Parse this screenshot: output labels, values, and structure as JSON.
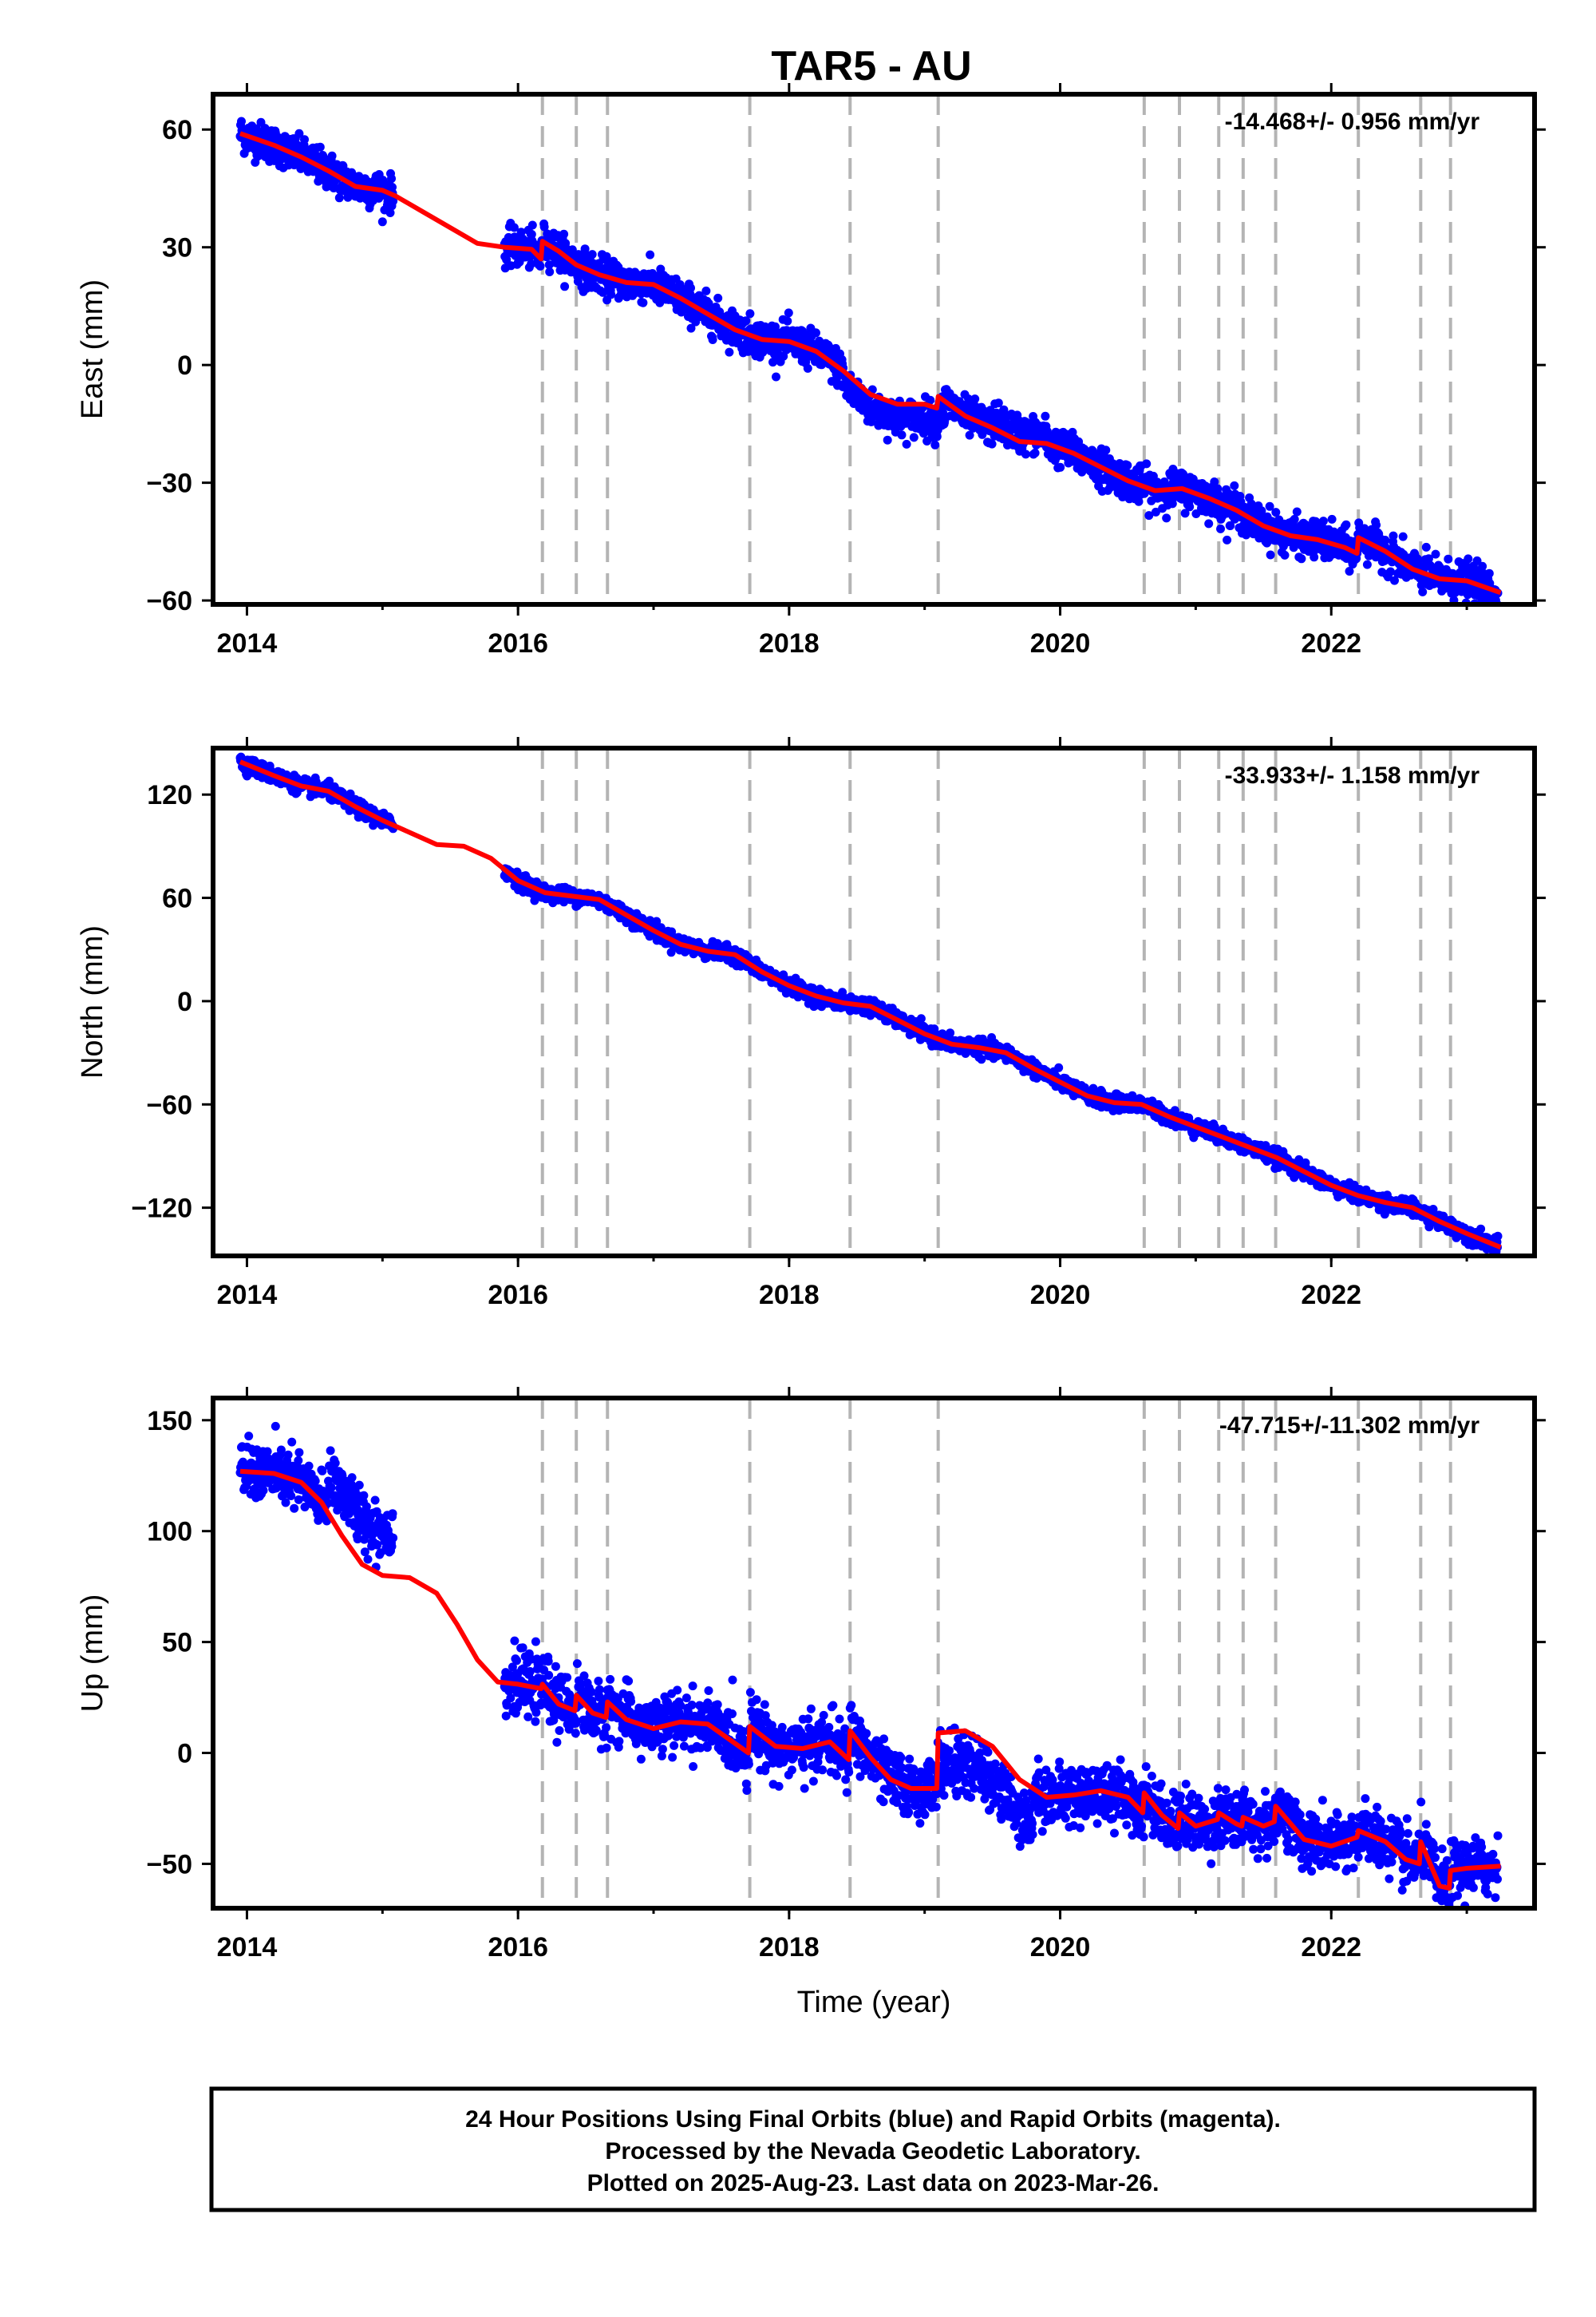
{
  "title": "TAR5 - AU",
  "footer": {
    "line1": "24 Hour Positions Using Final Orbits (blue) and Rapid Orbits (magenta).",
    "line2": "Processed by the Nevada Geodetic Laboratory.",
    "line3": "Plotted on 2025-Aug-23. Last data on 2023-Mar-26."
  },
  "colors": {
    "data": "#0000ff",
    "model": "#ff0000",
    "break": "#b4b4b4",
    "frame": "#000000"
  },
  "chart_data": [
    {
      "type": "scatter",
      "ylabel": "East (mm)",
      "xlabel": "",
      "rate": "-14.468+/- 0.956 mm/yr",
      "xlim": [
        2013.75,
        2023.5
      ],
      "ylim": [
        -61,
        69
      ],
      "xticks": [
        2014,
        2016,
        2018,
        2020,
        2022
      ],
      "xtick_labels": [
        "2014",
        "2016",
        "2018",
        "2020",
        "2022"
      ],
      "yticks": [
        60,
        30,
        0,
        -30,
        -60
      ],
      "ytick_labels": [
        "60",
        "30",
        "0",
        "−30",
        "−60"
      ],
      "breaks": [
        2016.18,
        2016.43,
        2016.66,
        2017.71,
        2018.45,
        2019.1,
        2020.62,
        2020.88,
        2021.17,
        2021.35,
        2021.59,
        2022.2,
        2022.66,
        2022.88
      ],
      "series": [
        {
          "kind": "observations",
          "segments": [
            [
              2013.95,
              2015.08,
              0.003
            ],
            [
              2015.9,
              2023.23,
              0.003
            ]
          ],
          "noise": 2.3,
          "model_offset": [
            [
              2018.4,
              2019.15,
              -3.5
            ],
            [
              2019.5,
              2019.9,
              2.0
            ]
          ]
        },
        {
          "kind": "model",
          "x": [
            2013.95,
            2014.2,
            2014.4,
            2014.6,
            2014.8,
            2015.0,
            2015.1,
            2015.3,
            2015.5,
            2015.7,
            2015.9,
            2016.1,
            2016.17,
            2016.18,
            2016.3,
            2016.43,
            2016.6,
            2016.8,
            2017.0,
            2017.2,
            2017.4,
            2017.6,
            2017.8,
            2018.0,
            2018.2,
            2018.4,
            2018.6,
            2018.8,
            2019.0,
            2019.09,
            2019.1,
            2019.3,
            2019.5,
            2019.7,
            2019.9,
            2020.1,
            2020.3,
            2020.5,
            2020.7,
            2020.9,
            2021.1,
            2021.3,
            2021.5,
            2021.7,
            2021.9,
            2022.1,
            2022.19,
            2022.2,
            2022.4,
            2022.6,
            2022.8,
            2023.0,
            2023.25
          ],
          "y": [
            59,
            56,
            53,
            49.5,
            45.5,
            44.5,
            43,
            39,
            35,
            31,
            30,
            29.5,
            27,
            31.5,
            29,
            25.5,
            23,
            21,
            20.5,
            17,
            13,
            9,
            6.5,
            6,
            3.5,
            -1.5,
            -7.5,
            -10,
            -10,
            -11,
            -8,
            -13,
            -16,
            -19.5,
            -20,
            -22.5,
            -26,
            -29.5,
            -32,
            -31.5,
            -34,
            -37,
            -41,
            -43.5,
            -44.5,
            -46.5,
            -48,
            -44,
            -47.5,
            -52,
            -54.5,
            -55,
            -58
          ]
        }
      ]
    },
    {
      "type": "scatter",
      "ylabel": "North (mm)",
      "xlabel": "",
      "rate": "-33.933+/- 1.158 mm/yr",
      "xlim": [
        2013.75,
        2023.5
      ],
      "ylim": [
        -148,
        147
      ],
      "xticks": [
        2014,
        2016,
        2018,
        2020,
        2022
      ],
      "xtick_labels": [
        "2014",
        "2016",
        "2018",
        "2020",
        "2022"
      ],
      "yticks": [
        120,
        60,
        0,
        -60,
        -120
      ],
      "ytick_labels": [
        "120",
        "60",
        "0",
        "−60",
        "−120"
      ],
      "breaks": [
        2016.18,
        2016.43,
        2016.66,
        2017.71,
        2018.45,
        2019.1,
        2020.62,
        2020.88,
        2021.17,
        2021.35,
        2021.59,
        2022.2,
        2022.66,
        2022.88
      ],
      "series": [
        {
          "kind": "observations",
          "segments": [
            [
              2013.95,
              2015.08,
              0.003
            ],
            [
              2015.9,
              2023.23,
              0.003
            ]
          ],
          "noise": 2.2,
          "model_offset": []
        },
        {
          "kind": "model",
          "x": [
            2013.95,
            2014.2,
            2014.4,
            2014.6,
            2014.8,
            2015.0,
            2015.2,
            2015.4,
            2015.6,
            2015.8,
            2016.0,
            2016.2,
            2016.4,
            2016.6,
            2016.8,
            2017.0,
            2017.2,
            2017.4,
            2017.6,
            2017.8,
            2018.0,
            2018.2,
            2018.4,
            2018.6,
            2018.8,
            2019.0,
            2019.2,
            2019.4,
            2019.6,
            2019.8,
            2020.0,
            2020.2,
            2020.4,
            2020.6,
            2020.8,
            2021.0,
            2021.2,
            2021.4,
            2021.6,
            2021.8,
            2022.0,
            2022.2,
            2022.4,
            2022.6,
            2022.8,
            2023.0,
            2023.25
          ],
          "y": [
            139,
            131,
            125,
            122,
            113,
            105,
            98,
            91,
            90,
            83,
            70,
            63,
            61,
            59,
            50,
            41,
            33,
            29,
            27,
            17,
            9,
            3,
            -1,
            -3,
            -11,
            -19,
            -25,
            -27,
            -30,
            -39,
            -47,
            -55,
            -59,
            -60,
            -67,
            -73,
            -79,
            -85,
            -91,
            -99,
            -107,
            -113,
            -117,
            -120,
            -128,
            -135,
            -143
          ]
        }
      ]
    },
    {
      "type": "scatter",
      "ylabel": "Up (mm)",
      "xlabel": "Time (year)",
      "rate": "-47.715+/-11.302 mm/yr",
      "xlim": [
        2013.75,
        2023.5
      ],
      "ylim": [
        -70,
        160
      ],
      "xticks": [
        2014,
        2016,
        2018,
        2020,
        2022
      ],
      "xtick_labels": [
        "2014",
        "2016",
        "2018",
        "2020",
        "2022"
      ],
      "yticks": [
        150,
        100,
        50,
        0,
        -50
      ],
      "ytick_labels": [
        "150",
        "100",
        "50",
        "0",
        "−50"
      ],
      "breaks": [
        2016.18,
        2016.43,
        2016.66,
        2017.71,
        2018.45,
        2019.1,
        2020.62,
        2020.88,
        2021.17,
        2021.35,
        2021.59,
        2022.2,
        2022.66,
        2022.88
      ],
      "series": [
        {
          "kind": "observations",
          "segments": [
            [
              2013.95,
              2015.08,
              0.003
            ],
            [
              2015.9,
              2023.23,
              0.003
            ]
          ],
          "noise": 6.5,
          "model_offset": [
            [
              2013.95,
              2014.6,
              0
            ],
            [
              2014.6,
              2015.08,
              20
            ],
            [
              2019.1,
              2019.8,
              -15
            ]
          ]
        },
        {
          "kind": "model",
          "x": [
            2013.95,
            2014.2,
            2014.4,
            2014.55,
            2014.7,
            2014.85,
            2015.0,
            2015.2,
            2015.4,
            2015.55,
            2015.7,
            2015.85,
            2016.0,
            2016.17,
            2016.18,
            2016.3,
            2016.42,
            2016.43,
            2016.55,
            2016.65,
            2016.66,
            2016.8,
            2017.0,
            2017.2,
            2017.4,
            2017.7,
            2017.71,
            2017.9,
            2018.1,
            2018.3,
            2018.44,
            2018.45,
            2018.6,
            2018.75,
            2018.9,
            2019.09,
            2019.1,
            2019.3,
            2019.5,
            2019.7,
            2019.9,
            2020.1,
            2020.3,
            2020.5,
            2020.61,
            2020.62,
            2020.75,
            2020.87,
            2020.88,
            2021.0,
            2021.16,
            2021.17,
            2021.3,
            2021.34,
            2021.35,
            2021.5,
            2021.58,
            2021.59,
            2021.8,
            2022.0,
            2022.19,
            2022.2,
            2022.4,
            2022.55,
            2022.65,
            2022.66,
            2022.8,
            2022.87,
            2022.88,
            2023.0,
            2023.25
          ],
          "y": [
            127,
            126,
            122,
            113,
            98,
            85,
            80,
            79,
            72,
            58,
            42,
            32,
            31,
            29,
            31,
            22,
            19,
            26,
            18,
            16,
            23,
            15,
            11,
            14,
            13,
            0,
            12,
            3,
            2,
            5,
            -3,
            10,
            -2,
            -12,
            -16,
            -16,
            9,
            10,
            3,
            -12,
            -20,
            -19,
            -17,
            -20,
            -27,
            -18,
            -28,
            -34,
            -27,
            -33,
            -30,
            -27,
            -32,
            -33,
            -29,
            -33,
            -31,
            -24,
            -39,
            -42,
            -38,
            -35,
            -40,
            -48,
            -50,
            -40,
            -60,
            -61,
            -53,
            -52,
            -51
          ]
        }
      ]
    }
  ]
}
